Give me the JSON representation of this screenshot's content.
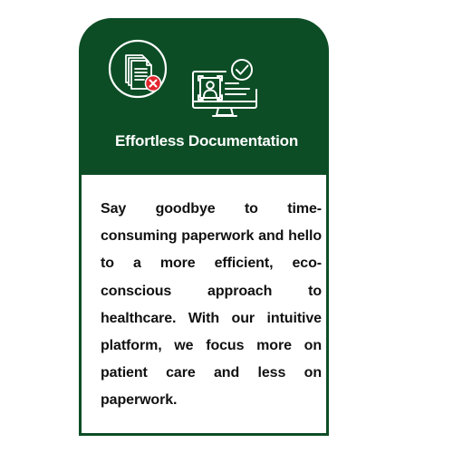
{
  "card": {
    "title": "Effortless Documentation",
    "description": "Say goodbye to time-consuming paperwork and hello to a more efficient, eco-conscious approach to healthcare. With our intuitive platform, we focus more on patient care and less on paperwork.",
    "icons": [
      "documents-cancel-icon",
      "monitor-user-verified-icon"
    ]
  },
  "colors": {
    "card_green": "#0c4d25",
    "cancel_red": "#e3262f",
    "text": "#111111",
    "background": "#ffffff"
  }
}
